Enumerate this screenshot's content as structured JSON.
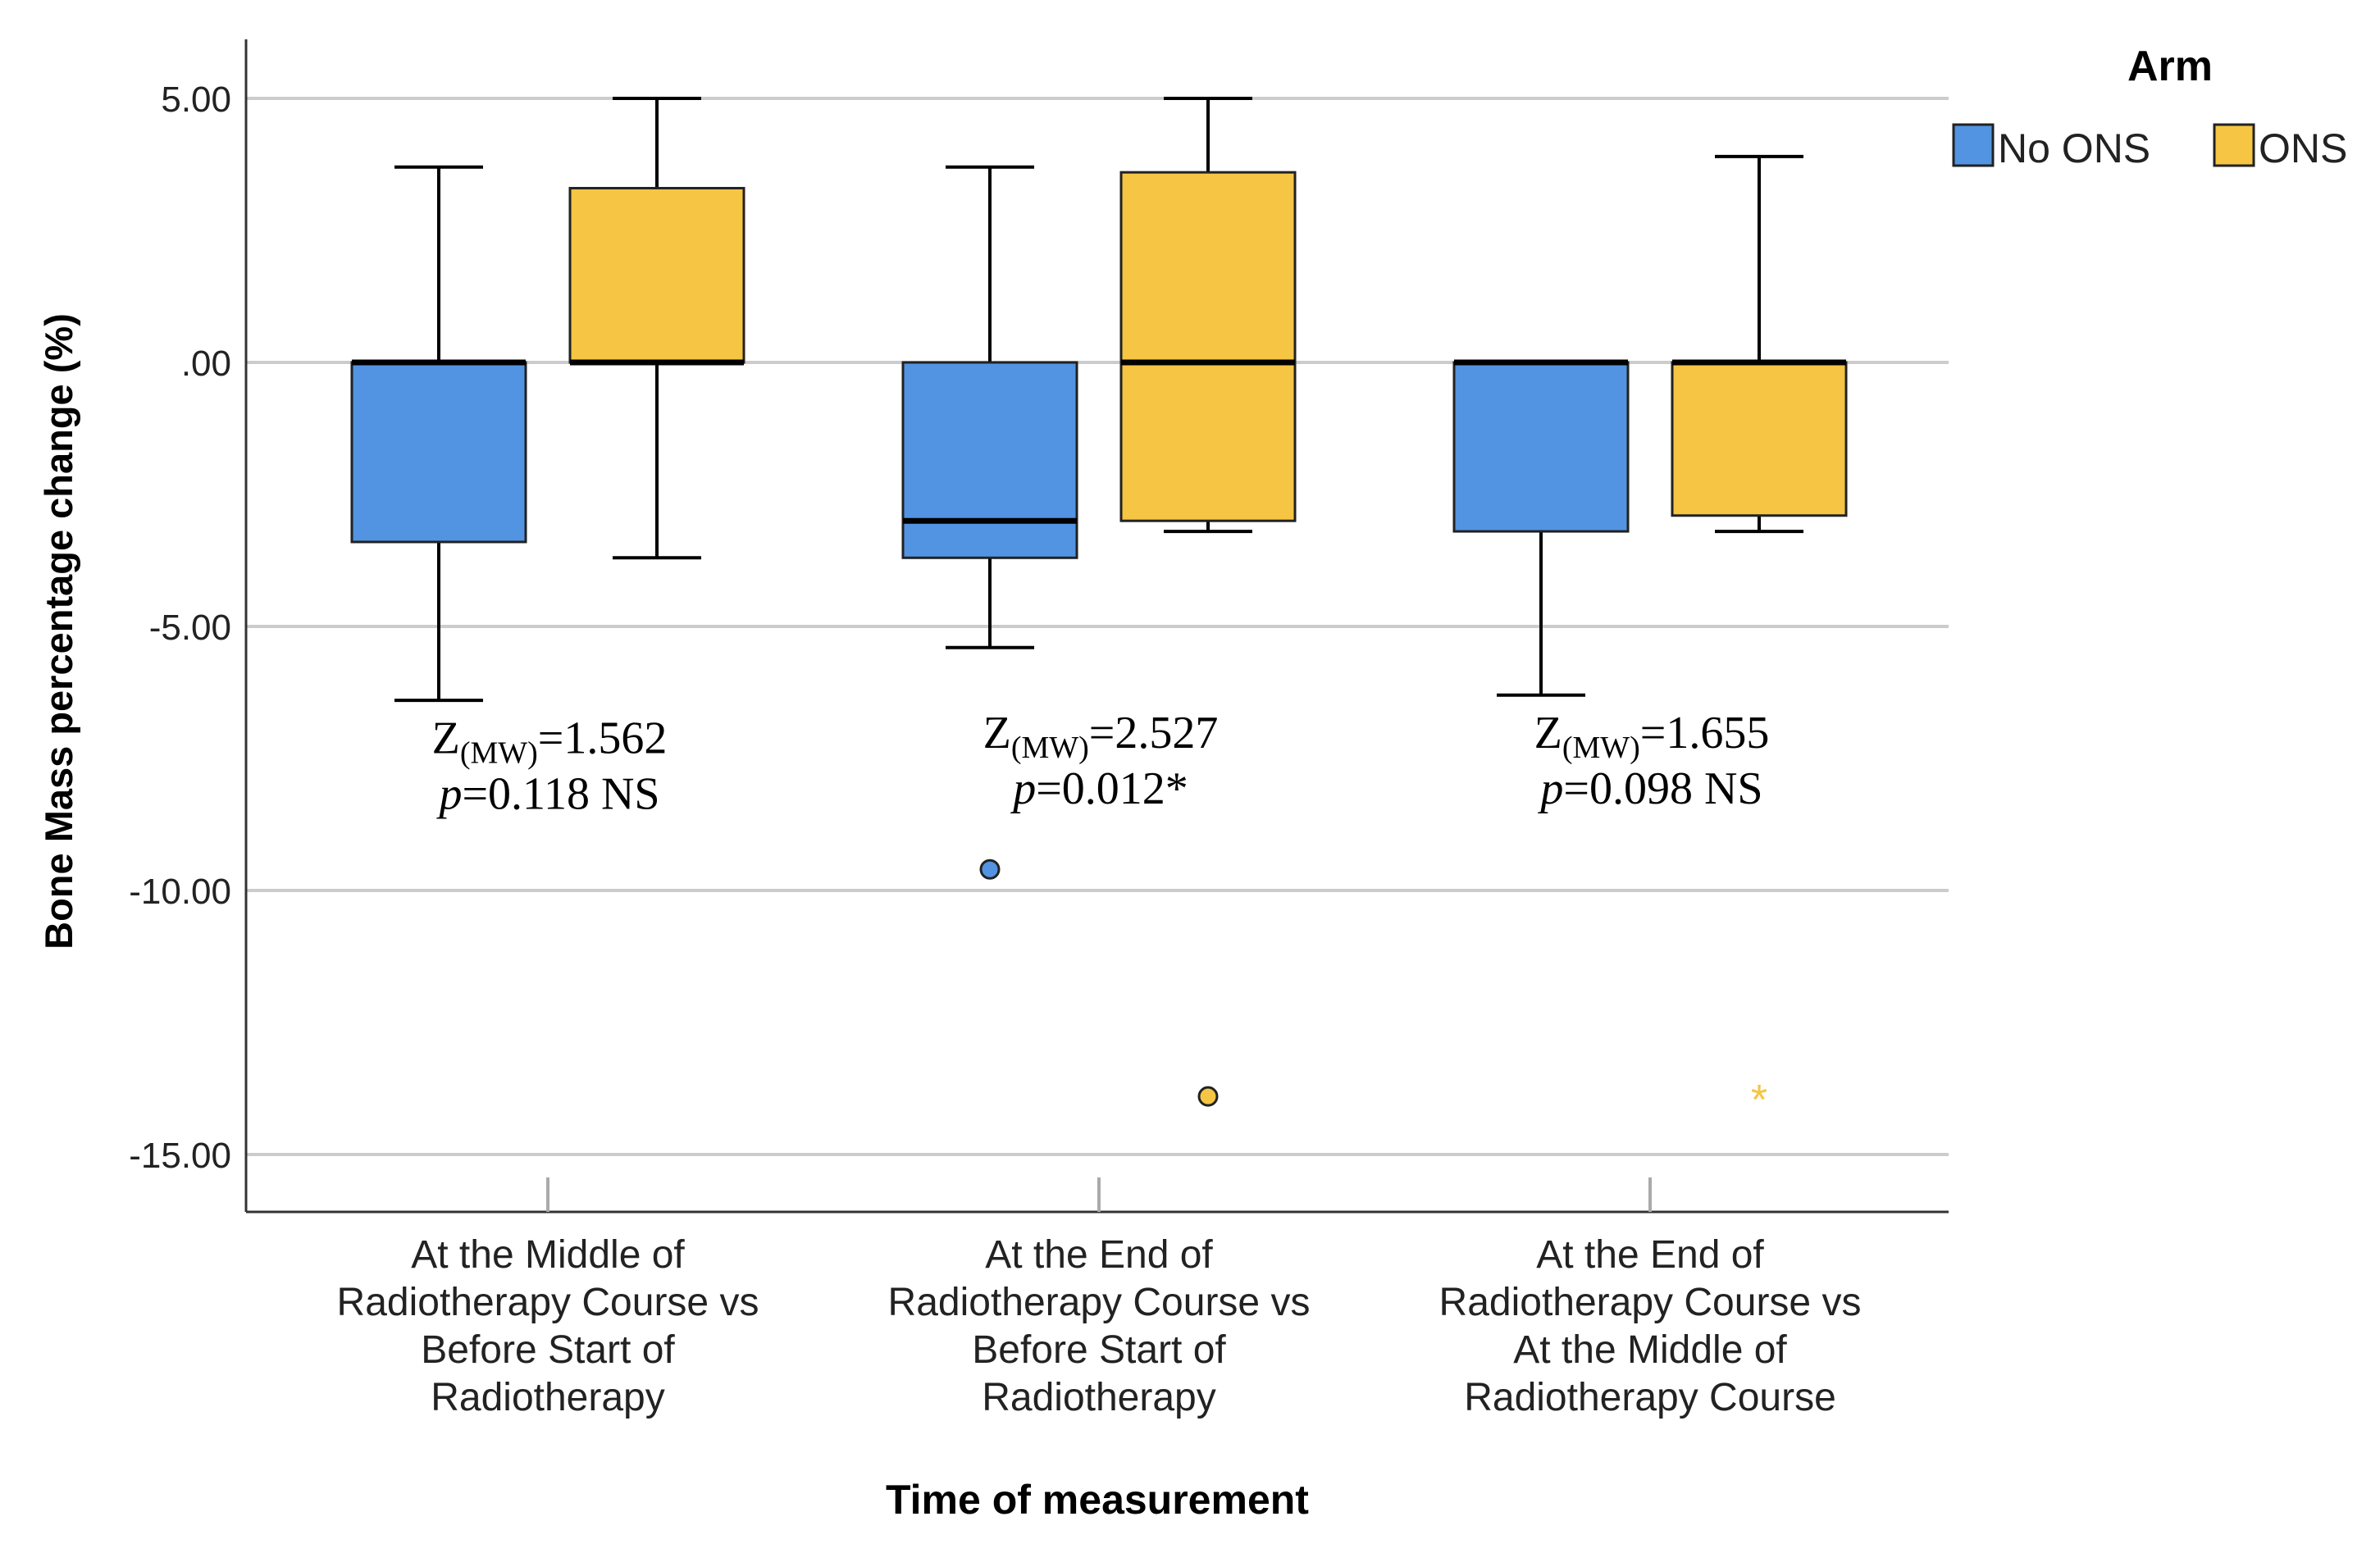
{
  "chart_data": {
    "type": "boxplot",
    "title": "",
    "xlabel": "Time of measurement",
    "ylabel": "Bone Mass percentage change (%)",
    "ylim": [
      -16.0,
      6.2
    ],
    "yticks": [
      {
        "value": 5,
        "label": "5.00"
      },
      {
        "value": 0,
        "label": ".00"
      },
      {
        "value": -5,
        "label": "-5.00"
      },
      {
        "value": -10,
        "label": "-10.00"
      },
      {
        "value": -15,
        "label": "-15.00"
      }
    ],
    "grid": true,
    "legend": {
      "title": "Arm",
      "position": "top-right"
    },
    "categories": [
      {
        "lines": [
          "At the Middle of",
          "Radiotherapy Course vs",
          "Before Start of",
          "Radiotherapy"
        ]
      },
      {
        "lines": [
          "At the End of",
          "Radiotherapy Course vs",
          "Before Start of",
          "Radiotherapy"
        ]
      },
      {
        "lines": [
          "At the End of",
          "Radiotherapy Course vs",
          "At the Middle of",
          "Radiotherapy Course"
        ]
      }
    ],
    "series": [
      {
        "name": "No ONS",
        "color": "#5294e2",
        "boxes": [
          {
            "min": -6.4,
            "q1": -3.4,
            "median": 0.0,
            "q3": 0.0,
            "max": 3.7,
            "outliers": [],
            "extremes": []
          },
          {
            "min": -5.4,
            "q1": -3.7,
            "median": -3.0,
            "q3": 0.0,
            "max": 3.7,
            "outliers": [
              -9.6
            ],
            "extremes": []
          },
          {
            "min": -6.3,
            "q1": -3.2,
            "median": 0.0,
            "q3": 0.0,
            "max": 0.0,
            "outliers": [],
            "extremes": []
          }
        ]
      },
      {
        "name": "ONS",
        "color": "#f5c543",
        "boxes": [
          {
            "min": -3.7,
            "q1": 0.0,
            "median": 0.0,
            "q3": 3.3,
            "max": 5.0,
            "outliers": [],
            "extremes": []
          },
          {
            "min": -3.2,
            "q1": -3.0,
            "median": 0.0,
            "q3": 3.6,
            "max": 5.0,
            "outliers": [
              -13.9
            ],
            "extremes": []
          },
          {
            "min": -3.2,
            "q1": -2.9,
            "median": 0.0,
            "q3": 0.0,
            "max": 3.9,
            "outliers": [],
            "extremes": [
              -13.9
            ]
          }
        ]
      }
    ],
    "annotations": [
      {
        "z_prefix": "Z",
        "z_sub": "(MW)",
        "z_value": "=1.562",
        "p_prefix": "p",
        "p_value": "=0.118 NS",
        "anchor_y": -7.4
      },
      {
        "z_prefix": "Z",
        "z_sub": "(MW)",
        "z_value": "=2.527",
        "p_prefix": "p",
        "p_value": "=0.012*",
        "anchor_y": -7.3
      },
      {
        "z_prefix": "Z",
        "z_sub": "(MW)",
        "z_value": "=1.655",
        "p_prefix": "p",
        "p_value": "=0.098 NS",
        "anchor_y": -7.3
      }
    ],
    "extreme_marker": "*"
  }
}
